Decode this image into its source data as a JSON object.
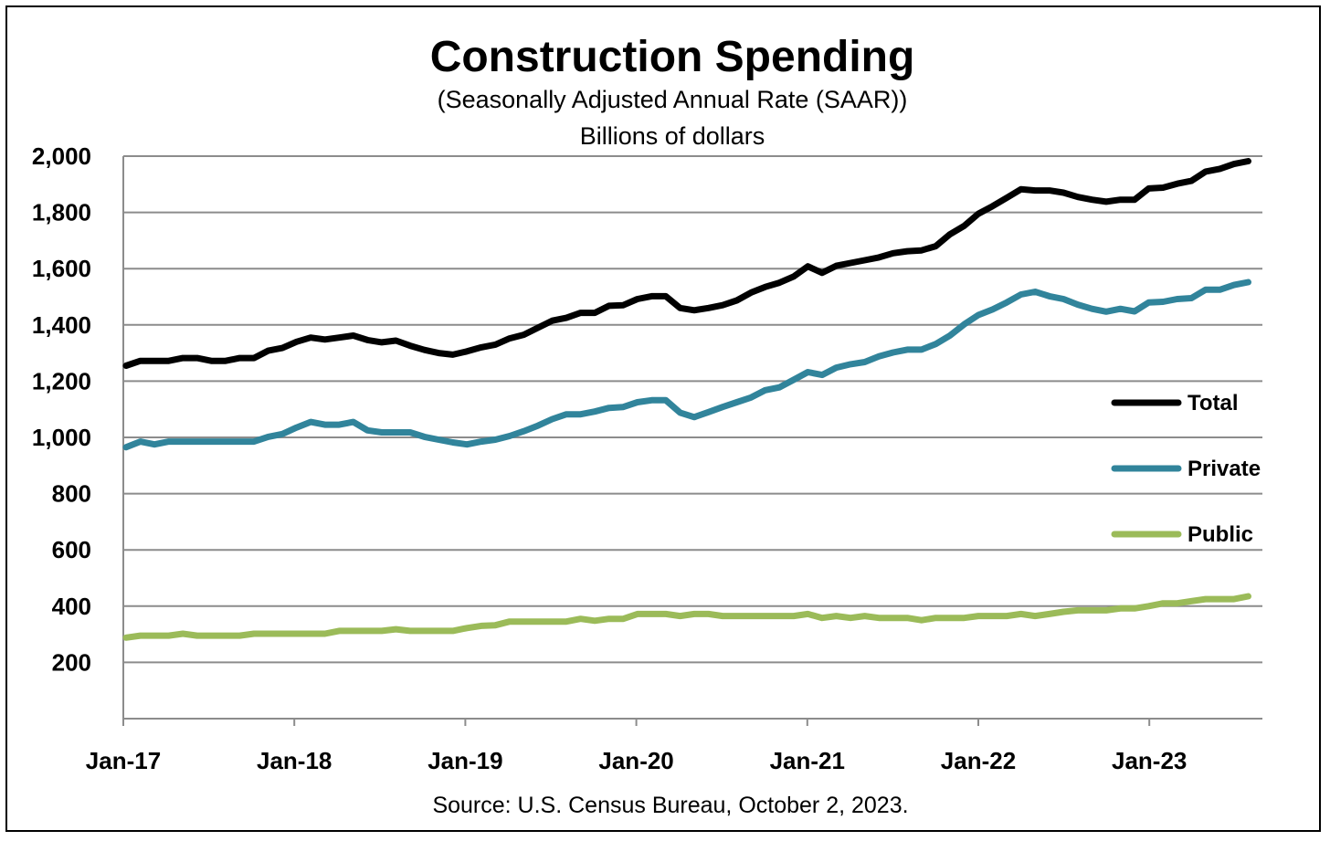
{
  "chart_data": {
    "type": "line",
    "title": "Construction  Spending",
    "subtitle": "(Seasonally Adjusted Annual Rate (SAAR))",
    "subtitle2": "Billions of dollars",
    "source": "Source: U.S. Census Bureau, October 2, 2023.",
    "ylim": [
      0,
      2000
    ],
    "yticks": [
      200,
      400,
      600,
      800,
      1000,
      1200,
      1400,
      1600,
      1800,
      2000
    ],
    "ytick_labels": [
      "200",
      "400",
      "600",
      "800",
      "1,000",
      "1,200",
      "1,400",
      "1,600",
      "1,800",
      "2,000"
    ],
    "xtick_labels": [
      "Jan-17",
      "Jan-18",
      "Jan-19",
      "Jan-20",
      "Jan-21",
      "Jan-22",
      "Jan-23"
    ],
    "xtick_month_index": [
      0,
      12,
      24,
      36,
      48,
      60,
      72
    ],
    "x_start": "2017-01",
    "x_end": "2023-08",
    "n_points": 80,
    "grid": true,
    "legend_position": "right",
    "series": [
      {
        "name": "Total",
        "color": "#000000",
        "values": [
          1255,
          1272,
          1272,
          1272,
          1282,
          1282,
          1272,
          1272,
          1282,
          1282,
          1308,
          1318,
          1340,
          1355,
          1348,
          1355,
          1362,
          1346,
          1338,
          1344,
          1326,
          1311,
          1300,
          1294,
          1306,
          1320,
          1330,
          1352,
          1365,
          1390,
          1415,
          1425,
          1443,
          1443,
          1468,
          1470,
          1492,
          1502,
          1502,
          1460,
          1452,
          1460,
          1470,
          1487,
          1515,
          1535,
          1550,
          1572,
          1608,
          1585,
          1610,
          1620,
          1630,
          1640,
          1655,
          1662,
          1665,
          1680,
          1722,
          1752,
          1795,
          1822,
          1852,
          1882,
          1878,
          1878,
          1870,
          1855,
          1845,
          1838,
          1845,
          1845,
          1885,
          1888,
          1902,
          1912,
          1945,
          1955,
          1972,
          1982
        ]
      },
      {
        "name": "Private",
        "color": "#31849b",
        "values": [
          965,
          985,
          975,
          985,
          985,
          985,
          985,
          985,
          985,
          985,
          1002,
          1012,
          1035,
          1055,
          1045,
          1045,
          1055,
          1025,
          1018,
          1018,
          1018,
          1002,
          992,
          982,
          975,
          985,
          992,
          1005,
          1022,
          1042,
          1065,
          1082,
          1082,
          1092,
          1105,
          1108,
          1125,
          1132,
          1132,
          1088,
          1072,
          1090,
          1108,
          1125,
          1142,
          1168,
          1178,
          1205,
          1232,
          1222,
          1248,
          1260,
          1268,
          1288,
          1302,
          1312,
          1312,
          1332,
          1362,
          1402,
          1435,
          1455,
          1480,
          1508,
          1518,
          1502,
          1492,
          1472,
          1457,
          1447,
          1457,
          1448,
          1480,
          1482,
          1492,
          1495,
          1525,
          1525,
          1542,
          1552
        ]
      },
      {
        "name": "Public",
        "color": "#9bbb59",
        "values": [
          288,
          295,
          295,
          295,
          302,
          295,
          295,
          295,
          295,
          302,
          302,
          302,
          302,
          302,
          302,
          312,
          312,
          312,
          312,
          318,
          312,
          312,
          312,
          312,
          322,
          330,
          332,
          345,
          345,
          345,
          345,
          345,
          355,
          348,
          355,
          355,
          372,
          372,
          372,
          365,
          372,
          372,
          365,
          365,
          365,
          365,
          365,
          365,
          372,
          358,
          365,
          358,
          365,
          358,
          358,
          358,
          350,
          358,
          358,
          358,
          365,
          365,
          365,
          372,
          365,
          372,
          380,
          385,
          385,
          385,
          392,
          392,
          400,
          410,
          410,
          418,
          425,
          425,
          425,
          435
        ]
      }
    ]
  }
}
